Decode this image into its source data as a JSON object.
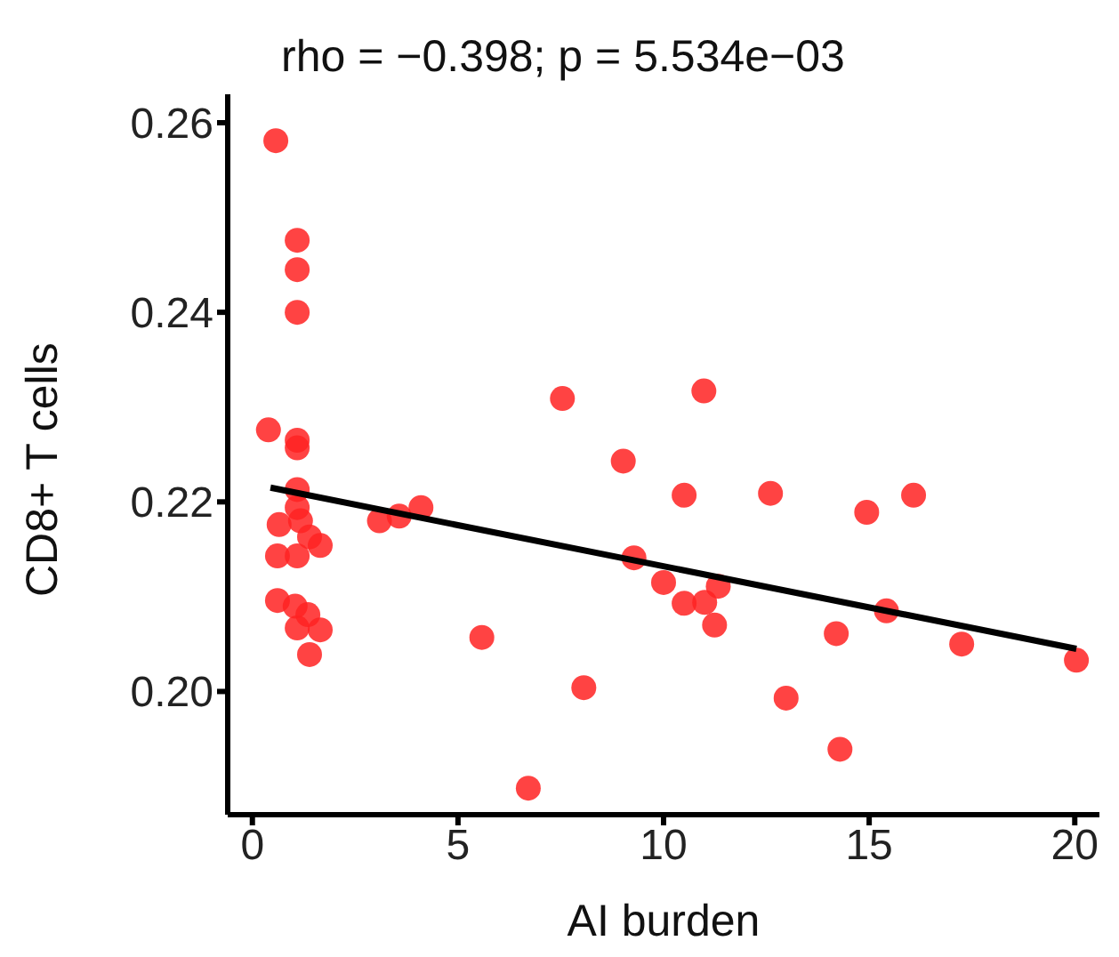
{
  "chart_data": {
    "type": "scatter",
    "title": "rho = −0.398; p = 5.534e−03",
    "xlabel": "AI burden",
    "ylabel": "CD8+ T cells",
    "xlim": [
      -0.6,
      20.6
    ],
    "xticks": [
      0,
      5,
      10,
      15,
      20
    ],
    "ylim": [
      0.187,
      0.263
    ],
    "yticks": [
      {
        "value": 0.2,
        "label": "0.20"
      },
      {
        "value": 0.22,
        "label": "0.22"
      },
      {
        "value": 0.24,
        "label": "0.24"
      },
      {
        "value": 0.26,
        "label": "0.26"
      }
    ],
    "grid": false,
    "legend": false,
    "marker": "circle",
    "series": [
      {
        "type": "scatter",
        "color": "#ff2222",
        "x": [
          0.57,
          1.09,
          1.09,
          1.09,
          0.39,
          1.09,
          1.09,
          1.09,
          1.09,
          0.65,
          1.17,
          1.39,
          1.65,
          0.61,
          1.09,
          0.61,
          1.04,
          1.35,
          1.09,
          1.65,
          1.39,
          3.09,
          3.57,
          4.1,
          7.54,
          10.98,
          9.02,
          10.5,
          12.6,
          9.28,
          10.0,
          11.33,
          10.5,
          11.0,
          11.24,
          5.58,
          8.06,
          6.71,
          14.94,
          16.08,
          15.42,
          14.2,
          17.25,
          20.04,
          12.98,
          14.29
        ],
        "values": [
          0.2581,
          0.2476,
          0.2445,
          0.24,
          0.2276,
          0.2265,
          0.2257,
          0.2213,
          0.2194,
          0.2176,
          0.218,
          0.2163,
          0.2154,
          0.2143,
          0.2143,
          0.2096,
          0.209,
          0.2081,
          0.2067,
          0.2065,
          0.2039,
          0.218,
          0.2185,
          0.2194,
          0.2309,
          0.2317,
          0.2243,
          0.2207,
          0.2209,
          0.2141,
          0.2115,
          0.2111,
          0.2093,
          0.2094,
          0.207,
          0.2057,
          0.2004,
          0.1898,
          0.2189,
          0.2207,
          0.2085,
          0.2061,
          0.205,
          0.2033,
          0.1993,
          0.1939
        ]
      },
      {
        "type": "line",
        "color": "#000000",
        "x": [
          0.44,
          20.04
        ],
        "values": [
          0.2215,
          0.2045
        ],
        "marker": "none",
        "line_style": "solid"
      }
    ]
  }
}
